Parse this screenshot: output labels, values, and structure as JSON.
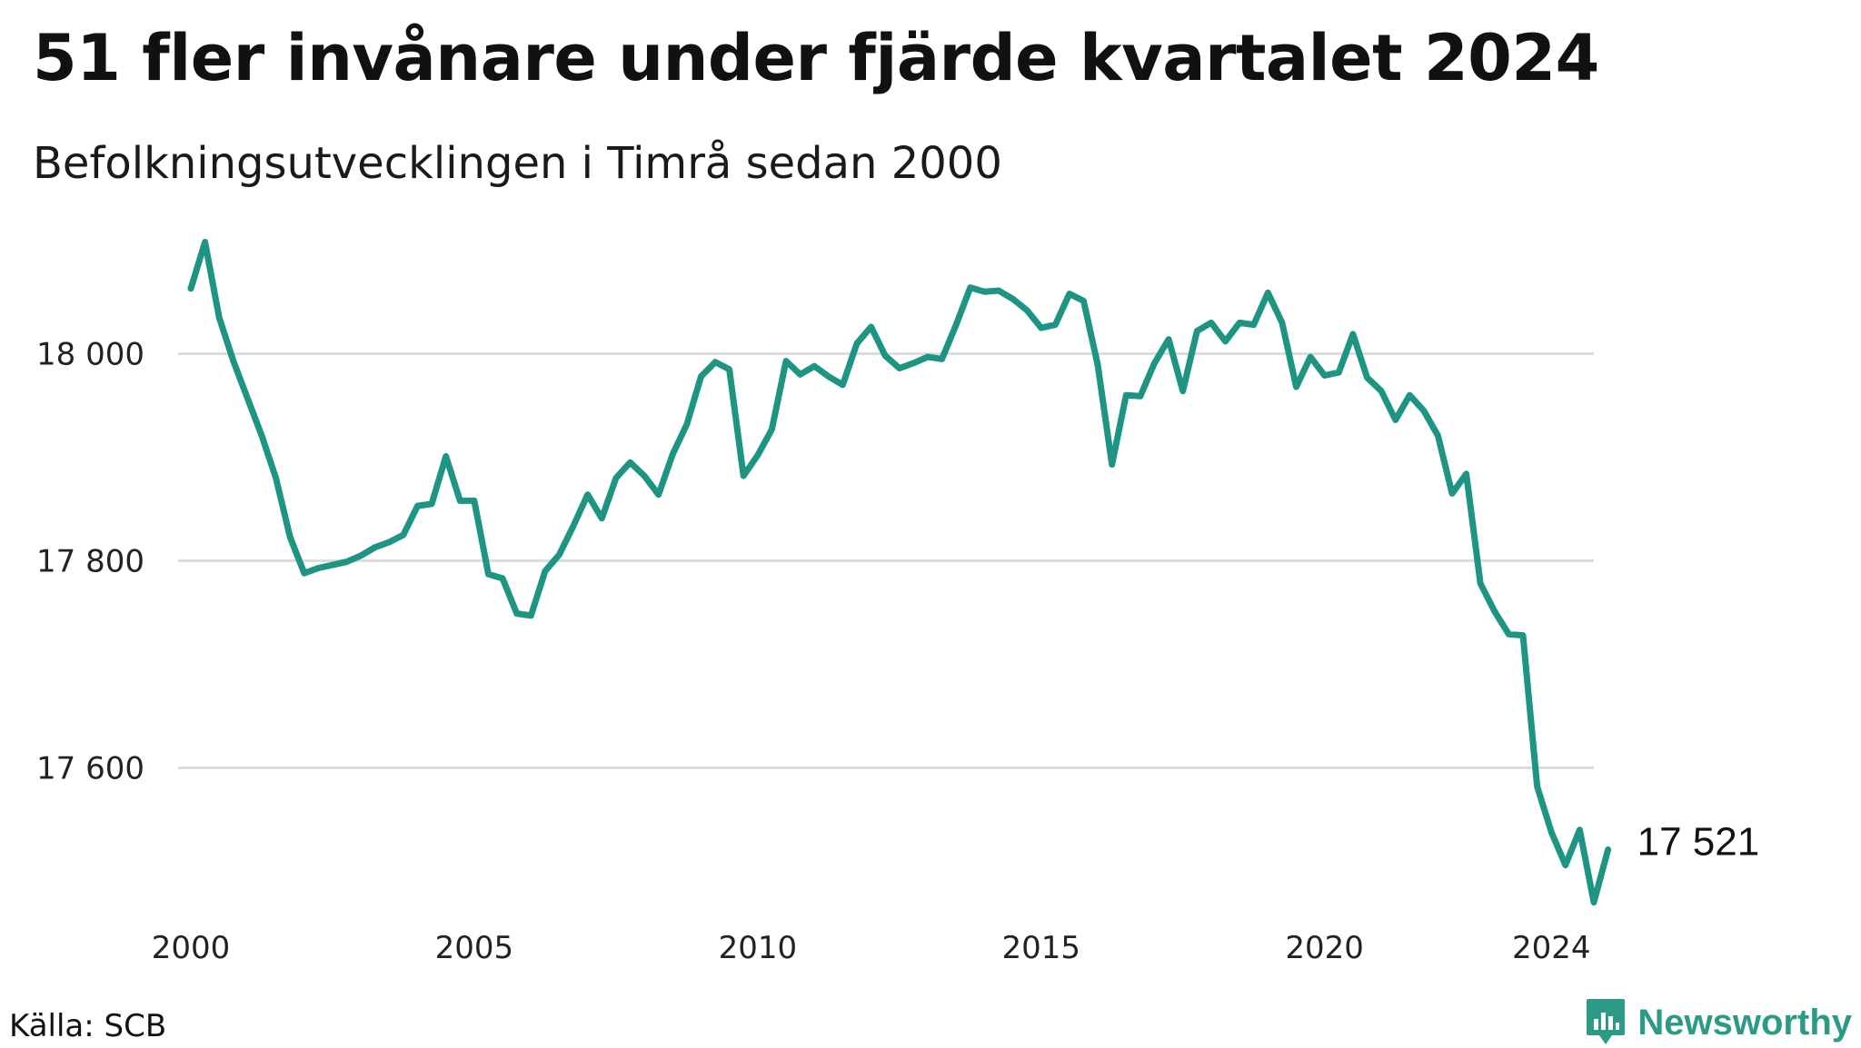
{
  "header": {
    "title": "51 fler invånare under fjärde kvartalet 2024",
    "subtitle": "Befolkningsutvecklingen i Timrå sedan 2000"
  },
  "footer": {
    "source": "Källa: SCB",
    "brand": "Newsworthy"
  },
  "colors": {
    "line": "#1e9583",
    "grid": "#dddddd",
    "brand": "#2b9b85"
  },
  "icons": {
    "brand_logo": "bar-chart-bubble-icon"
  },
  "chart_data": {
    "type": "line",
    "title": "51 fler invånare under fjärde kvartalet 2024",
    "subtitle": "Befolkningsutvecklingen i Timrå sedan 2000",
    "xlabel": "",
    "ylabel": "",
    "xlim": [
      2000,
      2024.75
    ],
    "ylim": [
      17460,
      18140
    ],
    "grid": true,
    "legend": "none",
    "x_ticks": [
      2000,
      2005,
      2010,
      2015,
      2020,
      2024
    ],
    "x_tick_labels": [
      "2000",
      "2005",
      "2010",
      "2015",
      "2020",
      "2024"
    ],
    "y_ticks": [
      17600,
      17800,
      18000
    ],
    "y_tick_labels": [
      "17 600",
      "17 800",
      "18 000"
    ],
    "end_label": "17 521",
    "series": [
      {
        "x_start": 2000.0,
        "x_step": 0.25,
        "values": [
          18063,
          18108,
          18035,
          17993,
          17957,
          17921,
          17880,
          17823,
          17788,
          17793,
          17796,
          17799,
          17805,
          17813,
          17818,
          17825,
          17853,
          17855,
          17901,
          17858,
          17858,
          17787,
          17783,
          17749,
          17747,
          17790,
          17806,
          17834,
          17864,
          17841,
          17880,
          17895,
          17882,
          17864,
          17903,
          17932,
          17978,
          17992,
          17985,
          17882,
          17902,
          17927,
          17993,
          17980,
          17988,
          17978,
          17970,
          18010,
          18026,
          17998,
          17986,
          17991,
          17997,
          17995,
          18028,
          18064,
          18060,
          18061,
          18053,
          18042,
          18025,
          18028,
          18058,
          18051,
          17989,
          17893,
          17960,
          17959,
          17991,
          18014,
          17964,
          18022,
          18030,
          18012,
          18030,
          18028,
          18059,
          18030,
          17968,
          17997,
          17979,
          17982,
          18019,
          17977,
          17964,
          17936,
          17960,
          17945,
          17921,
          17865,
          17884,
          17778,
          17751,
          17729,
          17728,
          17582,
          17538,
          17506,
          17540,
          17470,
          17521
        ]
      }
    ]
  }
}
